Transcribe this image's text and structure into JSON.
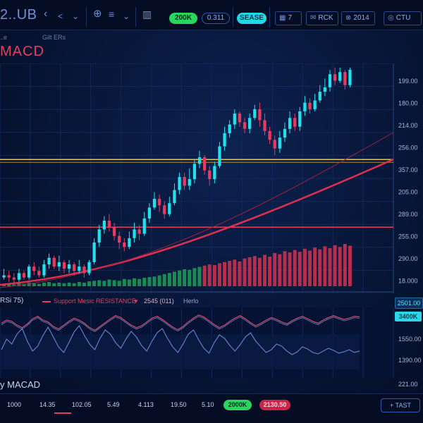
{
  "toolbar": {
    "symbol": "2..UB",
    "icons": [
      "chevron-left-icon",
      "chevron-down-icon",
      "add-circle-icon",
      "indicator-lines-icon",
      "chevron-down-icon",
      "bar-chart-icon"
    ],
    "pill_green": "200K",
    "pill_outline": "0.311",
    "pill_cyan": "SEASE",
    "box_a": "7",
    "box_b": "RCK",
    "box_c": "2014",
    "box_d": "CTU"
  },
  "header": {
    "sub_left": "..e",
    "sub_mid": "Gilt ERs",
    "title": "MACD"
  },
  "price_axis": [
    "199.00",
    "180.00",
    "214.00",
    "256.00",
    "357.00",
    "205.00",
    "289.00",
    "255.00",
    "290.00",
    "18.000"
  ],
  "rsi_bar": {
    "label": "RSi 75)",
    "legend": "Support Mesic RESISTANCE",
    "value": "2545 (011)",
    "extra": "Herlo",
    "badge_a": "2501.00",
    "badge_b": "3400K"
  },
  "osc_axis": [
    "1550.00",
    "1390.00",
    "221.00"
  ],
  "macd_label": "y MACAD",
  "bottom": {
    "times": [
      "1000",
      "14.35",
      "102.05",
      "5.49",
      "4.113",
      "19.50",
      "5.10"
    ],
    "pill_green": "2000K",
    "pill_red": "2130.50",
    "button": "TAST"
  },
  "colors": {
    "bull": "#22e0ec",
    "bear": "#e83a5e",
    "support": "#e8c54a",
    "resistance": "#e0405e",
    "volume_red": "#d4324f",
    "volume_green": "#1f9f57"
  },
  "chart_data": {
    "type": "candlestick",
    "ylim": [
      0,
      100
    ],
    "candles": [
      [
        4,
        5,
        8,
        3
      ],
      [
        5,
        4,
        7,
        2
      ],
      [
        4,
        3,
        6,
        1
      ],
      [
        3,
        6,
        8,
        2
      ],
      [
        6,
        4,
        7,
        3
      ],
      [
        4,
        9,
        10,
        3
      ],
      [
        9,
        7,
        11,
        5
      ],
      [
        7,
        5,
        9,
        4
      ],
      [
        5,
        10,
        12,
        4
      ],
      [
        10,
        13,
        15,
        8
      ],
      [
        13,
        9,
        14,
        8
      ],
      [
        9,
        11,
        14,
        7
      ],
      [
        11,
        8,
        12,
        6
      ],
      [
        8,
        10,
        12,
        6
      ],
      [
        10,
        7,
        11,
        5
      ],
      [
        7,
        9,
        12,
        6
      ],
      [
        9,
        6,
        10,
        4
      ],
      [
        6,
        11,
        12,
        5
      ],
      [
        11,
        20,
        22,
        10
      ],
      [
        20,
        26,
        28,
        18
      ],
      [
        26,
        30,
        32,
        24
      ],
      [
        30,
        27,
        33,
        25
      ],
      [
        27,
        23,
        29,
        21
      ],
      [
        23,
        20,
        25,
        17
      ],
      [
        20,
        18,
        22,
        16
      ],
      [
        18,
        22,
        25,
        17
      ],
      [
        22,
        26,
        29,
        20
      ],
      [
        26,
        24,
        28,
        21
      ],
      [
        24,
        31,
        34,
        23
      ],
      [
        31,
        36,
        38,
        29
      ],
      [
        36,
        40,
        43,
        35
      ],
      [
        40,
        37,
        42,
        34
      ],
      [
        37,
        33,
        39,
        31
      ],
      [
        33,
        38,
        41,
        32
      ],
      [
        38,
        44,
        47,
        37
      ],
      [
        44,
        50,
        52,
        42
      ],
      [
        50,
        46,
        52,
        44
      ],
      [
        46,
        49,
        54,
        44
      ],
      [
        49,
        56,
        58,
        47
      ],
      [
        56,
        59,
        62,
        54
      ],
      [
        59,
        53,
        60,
        51
      ],
      [
        53,
        49,
        55,
        46
      ],
      [
        49,
        55,
        57,
        47
      ],
      [
        55,
        64,
        66,
        54
      ],
      [
        64,
        70,
        73,
        62
      ],
      [
        70,
        74,
        76,
        68
      ],
      [
        74,
        79,
        81,
        72
      ],
      [
        79,
        75,
        80,
        73
      ],
      [
        75,
        72,
        77,
        70
      ],
      [
        72,
        77,
        79,
        70
      ],
      [
        77,
        81,
        83,
        76
      ],
      [
        81,
        76,
        84,
        73
      ],
      [
        76,
        71,
        79,
        69
      ],
      [
        71,
        67,
        73,
        65
      ],
      [
        67,
        63,
        69,
        60
      ],
      [
        63,
        68,
        71,
        61
      ],
      [
        68,
        72,
        75,
        66
      ],
      [
        72,
        77,
        80,
        70
      ],
      [
        77,
        73,
        79,
        71
      ],
      [
        73,
        80,
        82,
        71
      ],
      [
        80,
        84,
        87,
        78
      ],
      [
        84,
        81,
        86,
        79
      ],
      [
        81,
        85,
        88,
        80
      ],
      [
        85,
        89,
        92,
        84
      ],
      [
        89,
        91,
        95,
        87
      ],
      [
        91,
        97,
        99,
        89
      ],
      [
        97,
        94,
        100,
        92
      ],
      [
        94,
        98,
        100,
        93
      ],
      [
        98,
        92,
        99,
        90
      ],
      [
        92,
        99,
        100,
        91
      ]
    ],
    "volume": [
      3,
      4,
      3,
      5,
      4,
      6,
      5,
      4,
      6,
      7,
      5,
      6,
      5,
      6,
      5,
      7,
      6,
      8,
      9,
      10,
      9,
      11,
      10,
      9,
      12,
      11,
      13,
      12,
      14,
      15,
      16,
      18,
      20,
      22,
      24,
      26,
      28,
      27,
      30,
      32,
      34,
      36,
      35,
      38,
      40,
      42,
      44,
      41,
      46,
      48,
      50,
      47,
      52,
      49,
      55,
      53,
      58,
      56,
      60,
      57,
      62,
      59,
      64,
      61,
      66,
      63,
      68,
      65,
      70,
      67
    ],
    "support_level": 58,
    "resistance_level": 27,
    "series": [
      {
        "name": "RSI",
        "values": [
          55,
          60,
          58,
          52,
          48,
          54,
          62,
          66,
          60,
          57,
          50,
          46,
          52,
          58,
          63,
          60,
          55,
          48,
          44,
          50,
          56,
          62,
          67,
          64,
          58,
          52,
          48,
          51,
          57,
          63,
          66,
          61,
          55,
          49,
          45,
          50,
          57,
          63,
          68,
          65,
          59,
          53,
          48,
          52,
          58,
          63,
          67,
          62,
          56,
          51,
          55,
          60,
          64,
          61,
          57,
          54,
          59,
          63,
          66,
          62,
          58,
          55,
          60,
          64,
          67,
          64,
          61,
          63,
          66,
          65
        ]
      },
      {
        "name": "MACD",
        "values": [
          40,
          55,
          48,
          62,
          70,
          52,
          38,
          45,
          60,
          72,
          58,
          44,
          36,
          50,
          65,
          74,
          60,
          48,
          40,
          56,
          68,
          62,
          50,
          42,
          55,
          66,
          58,
          46,
          38,
          52,
          64,
          70,
          56,
          44,
          36,
          48,
          62,
          68,
          54,
          42,
          35,
          50,
          61,
          56,
          46,
          38,
          47,
          58,
          64,
          52,
          44,
          36,
          40,
          48,
          45,
          38,
          33,
          37,
          44,
          41,
          36,
          34,
          38,
          42,
          39,
          35,
          37,
          40,
          36,
          38
        ]
      }
    ]
  }
}
